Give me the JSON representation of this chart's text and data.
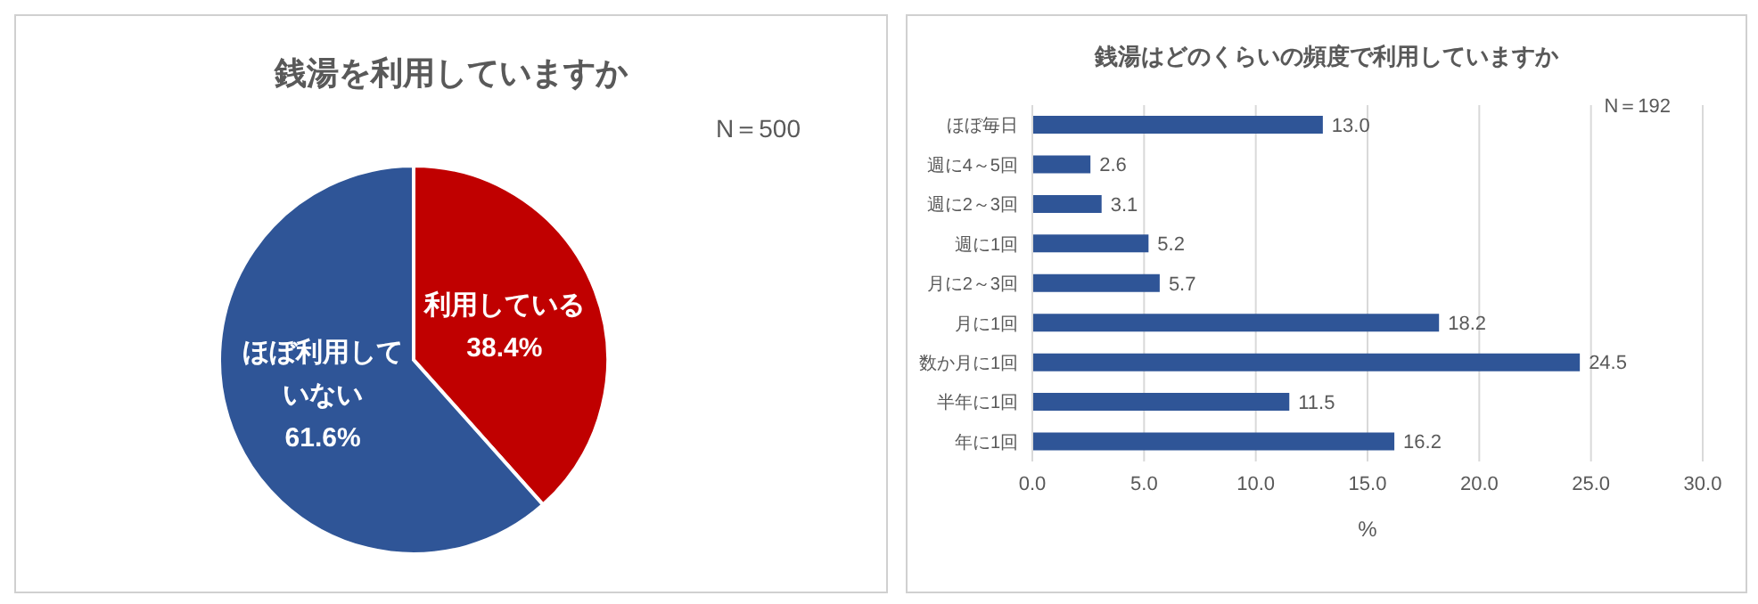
{
  "chart_data": [
    {
      "type": "pie",
      "title": "銭湯を利用していますか",
      "categories": [
        "利用している",
        "ほぼ利用していない"
      ],
      "values": [
        38.4,
        61.6
      ],
      "colors": [
        "#c00000",
        "#2f5597"
      ],
      "value_labels": [
        "38.4%",
        "61.6%"
      ],
      "annotations": [
        "N＝500"
      ],
      "legend": false
    },
    {
      "type": "bar",
      "orientation": "horizontal",
      "title": "銭湯はどのくらいの頻度で利用していますか",
      "xlabel": "%",
      "categories": [
        "ほぼ毎日",
        "週に4～5回",
        "週に2～3回",
        "週に1回",
        "月に2～3回",
        "月に1回",
        "数か月に1回",
        "半年に1回",
        "年に1回"
      ],
      "values": [
        13.0,
        2.6,
        3.1,
        5.2,
        5.7,
        18.2,
        24.5,
        11.5,
        16.2
      ],
      "value_labels": [
        "13.0",
        "2.6",
        "3.1",
        "5.2",
        "5.7",
        "18.2",
        "24.5",
        "11.5",
        "16.2"
      ],
      "color": "#2f5597",
      "xlim": [
        0,
        30
      ],
      "xticks": [
        {
          "value": 0,
          "label": "0.0"
        },
        {
          "value": 5,
          "label": "5.0"
        },
        {
          "value": 10,
          "label": "10.0"
        },
        {
          "value": 15,
          "label": "15.0"
        },
        {
          "value": 20,
          "label": "20.0"
        },
        {
          "value": 25,
          "label": "25.0"
        },
        {
          "value": 30,
          "label": "30.0"
        }
      ],
      "grid": "x",
      "legend": false,
      "annotations": [
        "N＝192"
      ]
    }
  ]
}
